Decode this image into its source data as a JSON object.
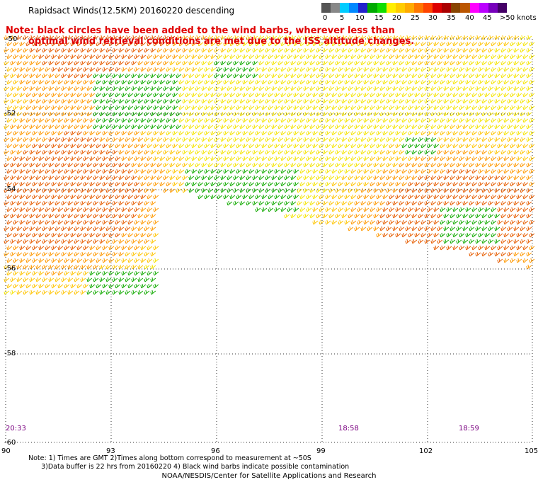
{
  "title": "Rapidsact Winds(12.5KM) 20160220 descending",
  "note_line1": "Note: black circles have been added to the wind barbs, wherever less than",
  "note_line2": "optimal wind retrieval conditions are met due to the ISS altitude changes.",
  "colorbar": {
    "labels": [
      "0",
      "5",
      "10",
      "15",
      "20",
      "25",
      "30",
      "35",
      "40",
      "45",
      ">50 knots"
    ],
    "colors": [
      "#555555",
      "#888888",
      "#00ccff",
      "#0088ff",
      "#2222cc",
      "#00aa00",
      "#11dd00",
      "#ffee00",
      "#ffcc00",
      "#ffaa00",
      "#ff7700",
      "#ff4400",
      "#dd0000",
      "#aa0000",
      "#884400",
      "#bb5500",
      "#ff00ff",
      "#bb00ff",
      "#7700bb",
      "#440066"
    ]
  },
  "lat_labels": [
    "-50",
    "-52",
    "-54",
    "-56",
    "-58",
    "-60"
  ],
  "lon_labels": [
    "90",
    "93",
    "96",
    "99",
    "102",
    "105"
  ],
  "times": [
    "20:33",
    "18:58",
    "18:59"
  ],
  "footnote_line1": "Note: 1) Times are GMT 2)Times along bottom correspond to measurement at ~50S",
  "footnote_line2": "      3)Data buffer is 22 hrs from 20160220 4) Black wind barbs indicate possible contamination",
  "credit": "NOAA/NESDIS/Center for Satellite Applications and Research"
}
